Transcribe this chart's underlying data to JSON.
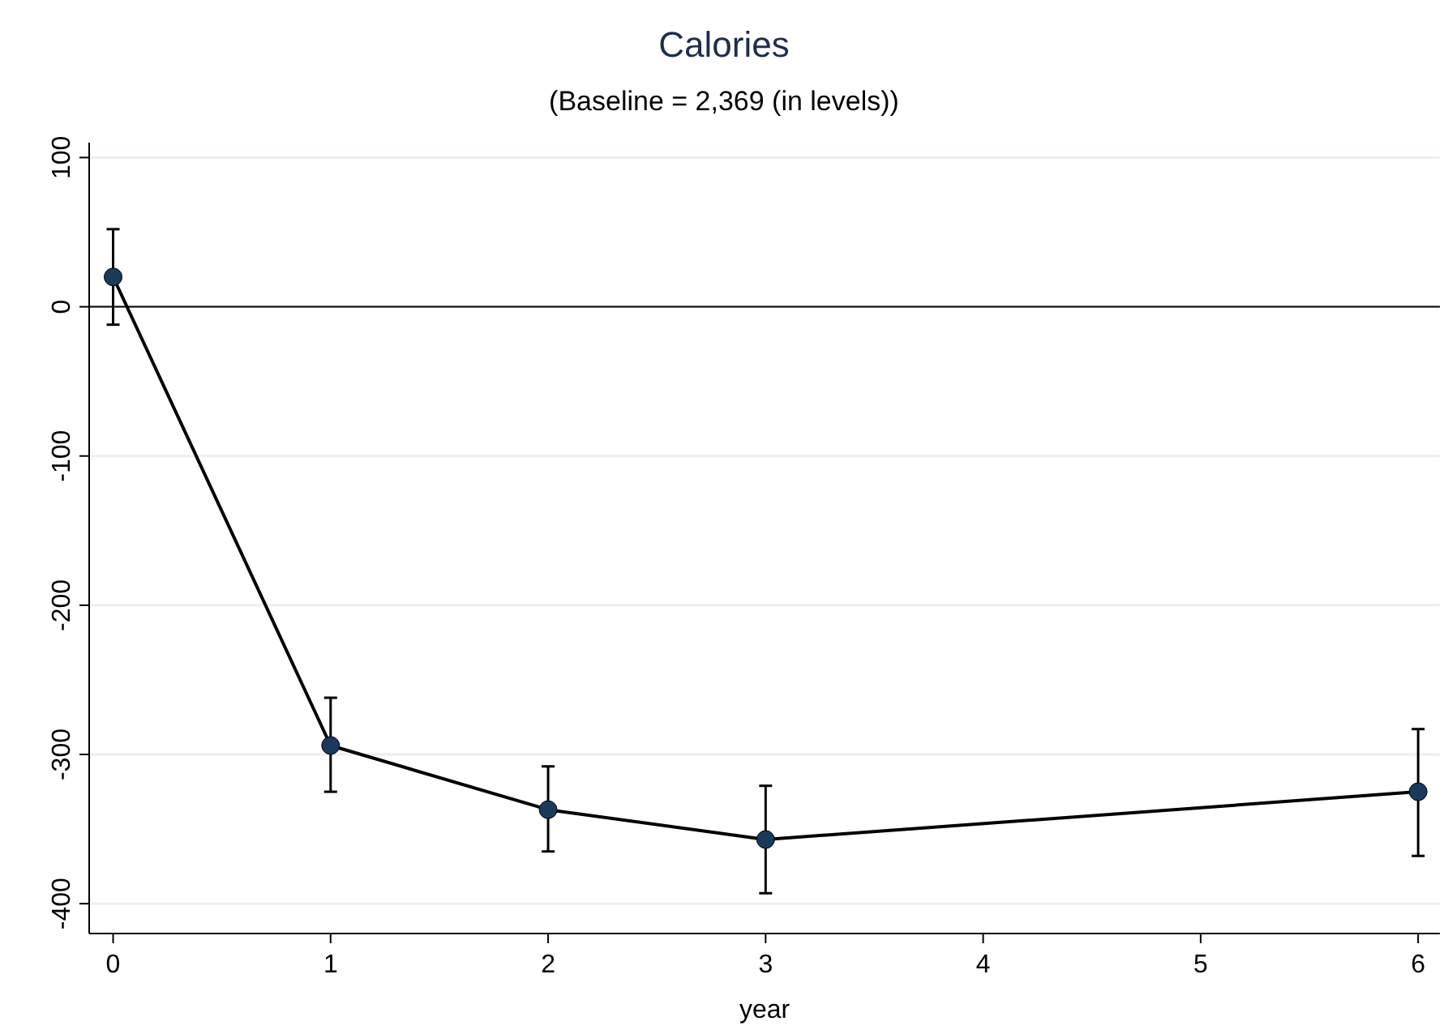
{
  "chart_data": {
    "type": "line",
    "title": "Calories",
    "subtitle": "(Baseline = 2,369 (in levels))",
    "xlabel": "year",
    "x": [
      0,
      1,
      2,
      3,
      6
    ],
    "series": [
      {
        "color": "#000000",
        "values": [
          20,
          -294,
          -337,
          -357,
          -325
        ],
        "errors": [
          [
            -12,
            52
          ],
          [
            -325,
            -262
          ],
          [
            -365,
            -308
          ],
          [
            -393,
            -321
          ],
          [
            -368,
            -283
          ]
        ]
      }
    ],
    "xlim": [
      -0.11,
      6.1
    ],
    "xticks": [
      0,
      1,
      2,
      3,
      4,
      5,
      6
    ],
    "ylim": [
      -420,
      110
    ],
    "yticks": [
      -400,
      -300,
      -200,
      -100,
      0,
      100
    ],
    "grid": "y",
    "marker": "circle",
    "line_style": "solid",
    "ref_lines": [
      {
        "axis": "y",
        "value": 0,
        "color": "#000000"
      }
    ]
  }
}
